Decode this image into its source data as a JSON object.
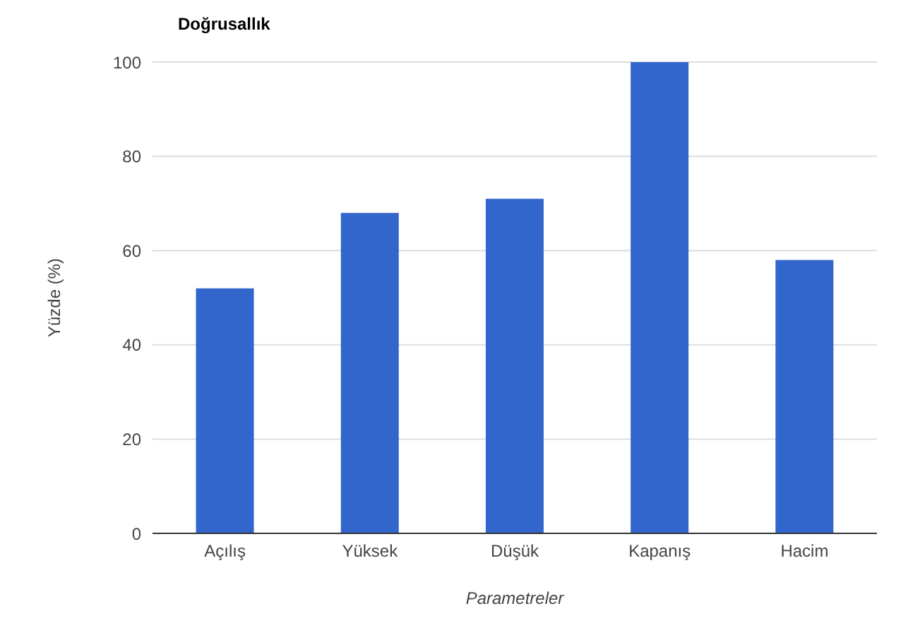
{
  "chart_data": {
    "type": "bar",
    "title": "Doğrusallık",
    "xlabel": "Parametreler",
    "ylabel": "Yüzde (%)",
    "categories": [
      "Açılış",
      "Yüksek",
      "Düşük",
      "Kapanış",
      "Hacim"
    ],
    "values": [
      52,
      68,
      71,
      100,
      58
    ],
    "color": "#3366cc",
    "ylim": [
      0,
      100
    ],
    "yticks": [
      0,
      20,
      40,
      60,
      80,
      100
    ],
    "grid": "y"
  }
}
